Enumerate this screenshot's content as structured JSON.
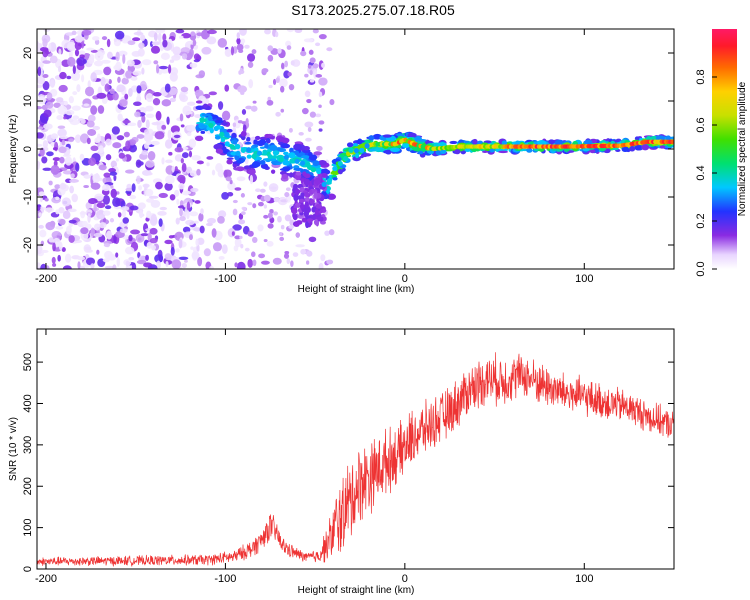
{
  "title": "S173.2025.275.07.18.R05",
  "chart_data": [
    {
      "type": "heatmap",
      "name": "spectrogram",
      "xlabel": "Height of straight line (km)",
      "ylabel": "Frequency (Hz)",
      "xlim": [
        -205,
        150
      ],
      "ylim": [
        -25,
        25
      ],
      "xticks": [
        -200,
        -100,
        0,
        100
      ],
      "yticks": [
        -20,
        -10,
        0,
        10,
        20
      ],
      "colorbar": {
        "label": "Normalized spectral amplitude",
        "range": [
          0,
          1
        ],
        "ticks": [
          0.0,
          0.2,
          0.4,
          0.6,
          0.8
        ]
      },
      "ridge": [
        {
          "x": -112,
          "y": 6
        },
        {
          "x": -105,
          "y": 4
        },
        {
          "x": -95,
          "y": 0
        },
        {
          "x": -85,
          "y": -1
        },
        {
          "x": -75,
          "y": -1
        },
        {
          "x": -65,
          "y": -2
        },
        {
          "x": -55,
          "y": -3
        },
        {
          "x": -48,
          "y": -5
        },
        {
          "x": -43,
          "y": -8
        },
        {
          "x": -38,
          "y": -4
        },
        {
          "x": -32,
          "y": -1
        },
        {
          "x": -25,
          "y": 0
        },
        {
          "x": -18,
          "y": 1
        },
        {
          "x": -10,
          "y": 1
        },
        {
          "x": -5,
          "y": 1
        },
        {
          "x": 0,
          "y": 2
        },
        {
          "x": 5,
          "y": 1
        },
        {
          "x": 15,
          "y": 0
        },
        {
          "x": 30,
          "y": 0.5
        },
        {
          "x": 60,
          "y": 0.5
        },
        {
          "x": 90,
          "y": 0.5
        },
        {
          "x": 120,
          "y": 0.7
        },
        {
          "x": 135,
          "y": 1.5
        },
        {
          "x": 150,
          "y": 1.5
        }
      ]
    },
    {
      "type": "line",
      "name": "snr",
      "xlabel": "Height of straight line (km)",
      "ylabel": "SNR (10 * v/v)",
      "xlim": [
        -205,
        150
      ],
      "ylim": [
        0,
        580
      ],
      "xticks": [
        -200,
        -100,
        0,
        100
      ],
      "yticks": [
        0,
        100,
        200,
        300,
        400,
        500
      ],
      "color": "#ee3333",
      "envelope": {
        "x": [
          -205,
          -150,
          -110,
          -95,
          -85,
          -80,
          -75,
          -72,
          -68,
          -62,
          -55,
          -48,
          -42,
          -38,
          -32,
          -25,
          -18,
          -10,
          -3,
          5,
          15,
          25,
          35,
          45,
          55,
          65,
          75,
          85,
          95,
          105,
          115,
          125,
          135,
          150
        ],
        "mean": [
          18,
          20,
          22,
          30,
          50,
          70,
          105,
          90,
          55,
          40,
          28,
          32,
          70,
          110,
          150,
          210,
          230,
          260,
          280,
          320,
          350,
          380,
          430,
          460,
          455,
          470,
          450,
          430,
          420,
          410,
          400,
          390,
          370,
          345
        ],
        "amp": [
          12,
          14,
          15,
          18,
          25,
          30,
          40,
          35,
          25,
          18,
          14,
          20,
          60,
          100,
          120,
          110,
          100,
          90,
          80,
          80,
          70,
          70,
          70,
          70,
          70,
          60,
          60,
          55,
          55,
          50,
          50,
          45,
          45,
          40
        ]
      }
    }
  ]
}
